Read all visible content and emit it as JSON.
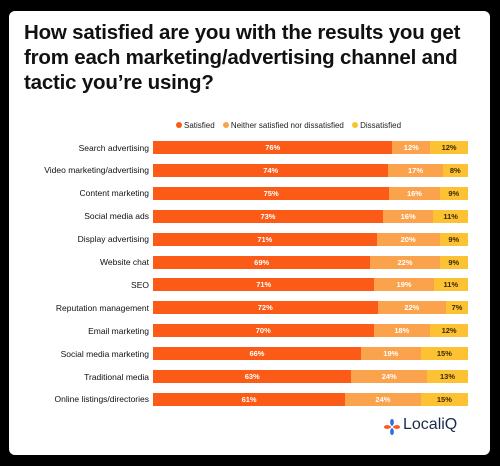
{
  "title": "How satisfied are you with the results you get from each marketing/advertising channel and tactic you’re using?",
  "legend": [
    {
      "label": "Satisfied",
      "color": "#fb5a17"
    },
    {
      "label": "Neither satisfied nor dissatisfied",
      "color": "#fba24d"
    },
    {
      "label": "Dissatisfied",
      "color": "#fdc234"
    }
  ],
  "brand": {
    "name": "LocaliQ",
    "icon": "localiq-flower-icon"
  },
  "chart_data": {
    "type": "bar",
    "orientation": "horizontal",
    "stacked": true,
    "categories": [
      "Search advertising",
      "Video marketing/advertising",
      "Content marketing",
      "Social media ads",
      "Display advertising",
      "Website chat",
      "SEO",
      "Reputation management",
      "Email marketing",
      "Social media marketing",
      "Traditional media",
      "Online listings/directories"
    ],
    "series": [
      {
        "name": "Satisfied",
        "color": "#fb5a17",
        "text_color": "#ffffff",
        "values": [
          76,
          74,
          75,
          73,
          71,
          69,
          71,
          72,
          70,
          66,
          63,
          61
        ]
      },
      {
        "name": "Neither satisfied nor dissatisfied",
        "color": "#fba24d",
        "text_color": "#ffffff",
        "values": [
          12,
          17,
          16,
          16,
          20,
          22,
          19,
          22,
          18,
          19,
          24,
          24
        ]
      },
      {
        "name": "Dissatisfied",
        "color": "#fdc234",
        "text_color": "#3a2a00",
        "values": [
          12,
          8,
          9,
          11,
          9,
          9,
          11,
          7,
          12,
          15,
          13,
          15
        ]
      }
    ],
    "value_suffix": "%",
    "xlim": [
      0,
      100
    ],
    "legend_position": "top"
  }
}
